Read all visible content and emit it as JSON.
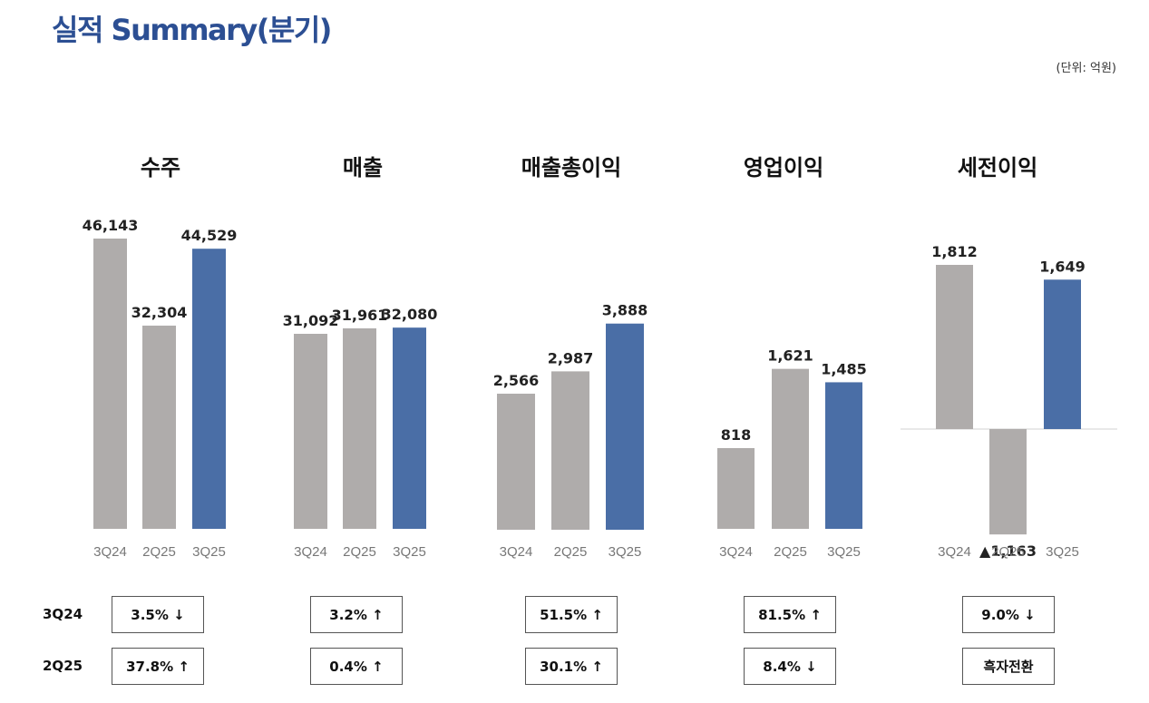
{
  "title": "실적 Summary(분기)",
  "unit": "(단위: 억원)",
  "colors": {
    "past": "#afacab",
    "current": "#4a6ea6",
    "text": "#222222",
    "tick": "#777777"
  },
  "chart_data": [
    {
      "type": "bar",
      "title": "수주",
      "categories": [
        "3Q24",
        "2Q25",
        "3Q25"
      ],
      "values": [
        46143,
        32304,
        44529
      ],
      "labels": [
        "46,143",
        "32,304",
        "44,529"
      ]
    },
    {
      "type": "bar",
      "title": "매출",
      "categories": [
        "3Q24",
        "2Q25",
        "3Q25"
      ],
      "values": [
        31092,
        31961,
        32080
      ],
      "labels": [
        "31,092",
        "31,961",
        "32,080"
      ]
    },
    {
      "type": "bar",
      "title": "매출총이익",
      "categories": [
        "3Q24",
        "2Q25",
        "3Q25"
      ],
      "values": [
        2566,
        2987,
        3888
      ],
      "labels": [
        "2,566",
        "2,987",
        "3,888"
      ]
    },
    {
      "type": "bar",
      "title": "영업이익",
      "categories": [
        "3Q24",
        "2Q25",
        "3Q25"
      ],
      "values": [
        818,
        1621,
        1485
      ],
      "labels": [
        "818",
        "1,621",
        "1,485"
      ]
    },
    {
      "type": "bar",
      "title": "세전이익",
      "categories": [
        "3Q24",
        "2Q25",
        "3Q25"
      ],
      "values": [
        1812,
        -1163,
        1649
      ],
      "labels": [
        "1,812",
        "▲1,163",
        "1,649"
      ]
    }
  ],
  "comparison": {
    "rows": [
      "3Q24",
      "2Q25"
    ],
    "values": [
      [
        "3.5% ↓",
        "3.2% ↑",
        "51.5% ↑",
        "81.5% ↑",
        "9.0% ↓"
      ],
      [
        "37.8% ↑",
        "0.4% ↑",
        "30.1% ↑",
        "8.4% ↓",
        "흑자전환"
      ]
    ]
  }
}
